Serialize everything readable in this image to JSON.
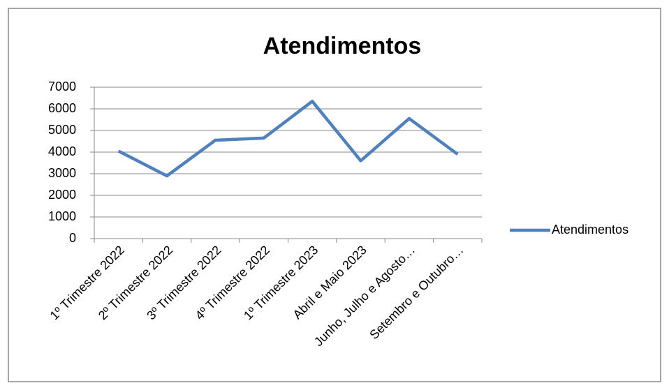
{
  "chart_data": {
    "type": "line",
    "title": "Atendimentos",
    "categories": [
      "1º Trimestre 2022",
      "2º Trimestre 2022",
      "3º Trimestre 2022",
      "4º Trimestre 2022",
      "1º Trimestre 2023",
      "Abril e Maio 2023",
      "Junho, Julho e Agosto…",
      "Setembro e Outubro…"
    ],
    "series": [
      {
        "name": "Atendimentos",
        "color": "#4f81bd",
        "values": [
          4050,
          2900,
          4550,
          4650,
          6350,
          3600,
          5550,
          3900
        ]
      }
    ],
    "ylim": [
      0,
      7000
    ],
    "yticks": [
      0,
      1000,
      2000,
      3000,
      4000,
      5000,
      6000,
      7000
    ],
    "grid": true,
    "legend": "right"
  }
}
